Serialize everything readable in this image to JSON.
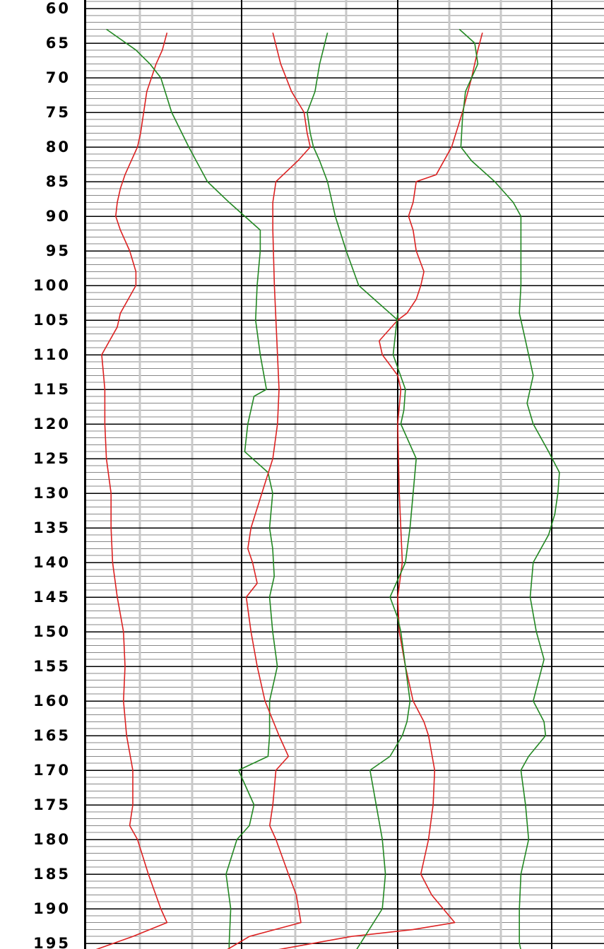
{
  "chart_data": {
    "type": "line",
    "y_axis": {
      "ticks": [
        60,
        65,
        70,
        75,
        80,
        85,
        90,
        95,
        100,
        105,
        110,
        115,
        120,
        125,
        130,
        135,
        140,
        145,
        150,
        155,
        160,
        165,
        170,
        175,
        180,
        185,
        190,
        195
      ],
      "tick_labels": [
        "60",
        "65",
        "70",
        "75",
        "80",
        "85",
        "90",
        "95",
        "100",
        "105",
        "110",
        "115",
        "120",
        "125",
        "130",
        "135",
        "140",
        "145",
        "150",
        "155",
        "160",
        "165",
        "170",
        "175",
        "180",
        "185",
        "190",
        "195"
      ],
      "range": [
        60,
        196
      ],
      "inverted": true,
      "minor_step": 1
    },
    "track_x_range": [
      0,
      1
    ],
    "grid": true,
    "colors": {
      "red_curve": "#dd2222",
      "green_curve": "#228822",
      "major_grid": "#000000",
      "minor_grid": "#888888",
      "vertical_grid": "#c8c8c8"
    },
    "tracks": [
      {
        "series": [
          {
            "color": "red",
            "points": [
              [
                63.5,
                0.52
              ],
              [
                66,
                0.49
              ],
              [
                68,
                0.45
              ],
              [
                70,
                0.42
              ],
              [
                72,
                0.39
              ],
              [
                75,
                0.37
              ],
              [
                78,
                0.35
              ],
              [
                80,
                0.33
              ],
              [
                82,
                0.29
              ],
              [
                84,
                0.25
              ],
              [
                86,
                0.22
              ],
              [
                88,
                0.2
              ],
              [
                90,
                0.19
              ],
              [
                92,
                0.22
              ],
              [
                95,
                0.28
              ],
              [
                98,
                0.32
              ],
              [
                100,
                0.32
              ],
              [
                102,
                0.27
              ],
              [
                104,
                0.22
              ],
              [
                106,
                0.2
              ],
              [
                108,
                0.15
              ],
              [
                110,
                0.1
              ],
              [
                115,
                0.12
              ],
              [
                120,
                0.12
              ],
              [
                125,
                0.13
              ],
              [
                130,
                0.16
              ],
              [
                135,
                0.16
              ],
              [
                140,
                0.17
              ],
              [
                145,
                0.2
              ],
              [
                150,
                0.24
              ],
              [
                155,
                0.25
              ],
              [
                160,
                0.24
              ],
              [
                165,
                0.26
              ],
              [
                170,
                0.3
              ],
              [
                175,
                0.3
              ],
              [
                178,
                0.28
              ],
              [
                180,
                0.33
              ],
              [
                185,
                0.4
              ],
              [
                190,
                0.48
              ],
              [
                192,
                0.52
              ],
              [
                194,
                0.3
              ],
              [
                196,
                0.05
              ]
            ]
          },
          {
            "color": "green",
            "points": [
              [
                63,
                0.13
              ],
              [
                66,
                0.32
              ],
              [
                68,
                0.41
              ],
              [
                70,
                0.48
              ],
              [
                75,
                0.55
              ],
              [
                80,
                0.66
              ],
              [
                85,
                0.78
              ],
              [
                88,
                0.92
              ],
              [
                90,
                1.02
              ],
              [
                92,
                1.12
              ],
              [
                95,
                1.12
              ],
              [
                100,
                1.1
              ],
              [
                105,
                1.09
              ],
              [
                110,
                1.12
              ],
              [
                115,
                1.16
              ],
              [
                116,
                1.08
              ],
              [
                120,
                1.04
              ],
              [
                124,
                1.02
              ],
              [
                127,
                1.17
              ],
              [
                130,
                1.2
              ],
              [
                135,
                1.18
              ],
              [
                138,
                1.2
              ],
              [
                142,
                1.21
              ],
              [
                145,
                1.18
              ],
              [
                150,
                1.2
              ],
              [
                155,
                1.23
              ],
              [
                160,
                1.18
              ],
              [
                165,
                1.18
              ],
              [
                168,
                1.17
              ],
              [
                170,
                0.98
              ],
              [
                175,
                1.08
              ],
              [
                178,
                1.05
              ],
              [
                180,
                0.97
              ],
              [
                185,
                0.9
              ],
              [
                190,
                0.93
              ],
              [
                195,
                0.92
              ],
              [
                196,
                0.92
              ]
            ]
          }
        ]
      },
      {
        "series": [
          {
            "color": "red",
            "points": [
              [
                63.5,
                0.2
              ],
              [
                68,
                0.25
              ],
              [
                72,
                0.32
              ],
              [
                75,
                0.4
              ],
              [
                78,
                0.42
              ],
              [
                80,
                0.44
              ],
              [
                82,
                0.36
              ],
              [
                85,
                0.22
              ],
              [
                88,
                0.2
              ],
              [
                92,
                0.2
              ],
              [
                100,
                0.21
              ],
              [
                105,
                0.22
              ],
              [
                110,
                0.23
              ],
              [
                115,
                0.24
              ],
              [
                120,
                0.23
              ],
              [
                125,
                0.2
              ],
              [
                130,
                0.13
              ],
              [
                135,
                0.06
              ],
              [
                138,
                0.04
              ],
              [
                140,
                0.07
              ],
              [
                143,
                0.1
              ],
              [
                145,
                0.03
              ],
              [
                150,
                0.06
              ],
              [
                155,
                0.1
              ],
              [
                160,
                0.15
              ],
              [
                165,
                0.24
              ],
              [
                168,
                0.3
              ],
              [
                170,
                0.22
              ],
              [
                175,
                0.2
              ],
              [
                178,
                0.18
              ],
              [
                180,
                0.22
              ],
              [
                185,
                0.3
              ],
              [
                188,
                0.35
              ],
              [
                192,
                0.38
              ],
              [
                194,
                0.05
              ],
              [
                196,
                -0.1
              ]
            ]
          },
          {
            "color": "green",
            "points": [
              [
                63.5,
                0.55
              ],
              [
                68,
                0.5
              ],
              [
                72,
                0.47
              ],
              [
                75,
                0.42
              ],
              [
                78,
                0.44
              ],
              [
                80,
                0.46
              ],
              [
                82,
                0.5
              ],
              [
                85,
                0.55
              ],
              [
                90,
                0.6
              ],
              [
                95,
                0.67
              ],
              [
                100,
                0.75
              ],
              [
                102,
                0.85
              ],
              [
                104,
                0.95
              ],
              [
                105,
                1.0
              ]
            ]
          }
        ]
      },
      {
        "series": [
          {
            "color": "red",
            "points": [
              [
                63.5,
                0.55
              ],
              [
                66,
                0.52
              ],
              [
                70,
                0.48
              ],
              [
                75,
                0.42
              ],
              [
                80,
                0.35
              ],
              [
                84,
                0.25
              ],
              [
                85,
                0.12
              ],
              [
                88,
                0.1
              ],
              [
                90,
                0.07
              ],
              [
                92,
                0.1
              ],
              [
                95,
                0.12
              ],
              [
                98,
                0.17
              ],
              [
                100,
                0.15
              ],
              [
                102,
                0.12
              ],
              [
                104,
                0.06
              ],
              [
                105,
                0.0
              ],
              [
                108,
                -0.12
              ],
              [
                110,
                -0.1
              ],
              [
                113,
                0.0
              ],
              [
                115,
                0.02
              ],
              [
                120,
                0.0
              ],
              [
                130,
                0.01
              ],
              [
                140,
                0.03
              ],
              [
                145,
                0.0
              ],
              [
                150,
                0.01
              ],
              [
                155,
                0.05
              ],
              [
                160,
                0.1
              ],
              [
                163,
                0.17
              ],
              [
                165,
                0.2
              ],
              [
                170,
                0.24
              ],
              [
                175,
                0.23
              ],
              [
                180,
                0.2
              ],
              [
                185,
                0.15
              ],
              [
                188,
                0.22
              ],
              [
                192,
                0.37
              ],
              [
                193,
                0.1
              ],
              [
                194,
                -0.3
              ],
              [
                196,
                -0.8
              ]
            ]
          },
          {
            "color": "green",
            "points": [
              [
                63,
                0.4
              ],
              [
                65,
                0.5
              ],
              [
                68,
                0.52
              ],
              [
                72,
                0.44
              ],
              [
                76,
                0.42
              ],
              [
                80,
                0.41
              ],
              [
                82,
                0.48
              ],
              [
                85,
                0.63
              ],
              [
                88,
                0.75
              ],
              [
                90,
                0.8
              ],
              [
                95,
                0.8
              ],
              [
                100,
                0.8
              ],
              [
                104,
                0.79
              ],
              [
                107,
                0.82
              ],
              [
                110,
                0.85
              ],
              [
                113,
                0.88
              ],
              [
                117,
                0.84
              ],
              [
                120,
                0.88
              ],
              [
                124,
                0.98
              ],
              [
                127,
                1.05
              ],
              [
                130,
                1.04
              ],
              [
                133,
                1.02
              ],
              [
                136,
                0.98
              ],
              [
                140,
                0.88
              ],
              [
                145,
                0.86
              ],
              [
                150,
                0.9
              ],
              [
                154,
                0.95
              ],
              [
                160,
                0.88
              ],
              [
                163,
                0.95
              ],
              [
                165,
                0.96
              ],
              [
                168,
                0.85
              ],
              [
                170,
                0.8
              ],
              [
                175,
                0.83
              ],
              [
                180,
                0.85
              ],
              [
                185,
                0.8
              ],
              [
                190,
                0.79
              ],
              [
                195,
                0.79
              ],
              [
                196,
                0.8
              ]
            ]
          },
          {
            "color": "green",
            "points": [
              [
                104,
                0.0
              ],
              [
                110,
                -0.03
              ],
              [
                115,
                0.05
              ],
              [
                118,
                0.04
              ],
              [
                120,
                0.02
              ],
              [
                125,
                0.12
              ],
              [
                130,
                0.1
              ],
              [
                135,
                0.08
              ],
              [
                140,
                0.05
              ],
              [
                145,
                -0.05
              ],
              [
                148,
                0.0
              ],
              [
                150,
                0.02
              ],
              [
                155,
                0.05
              ],
              [
                160,
                0.08
              ],
              [
                163,
                0.06
              ],
              [
                165,
                0.03
              ],
              [
                168,
                -0.05
              ],
              [
                170,
                -0.18
              ],
              [
                175,
                -0.14
              ],
              [
                180,
                -0.1
              ],
              [
                185,
                -0.08
              ],
              [
                190,
                -0.1
              ],
              [
                196,
                -0.27
              ]
            ]
          }
        ]
      }
    ]
  }
}
